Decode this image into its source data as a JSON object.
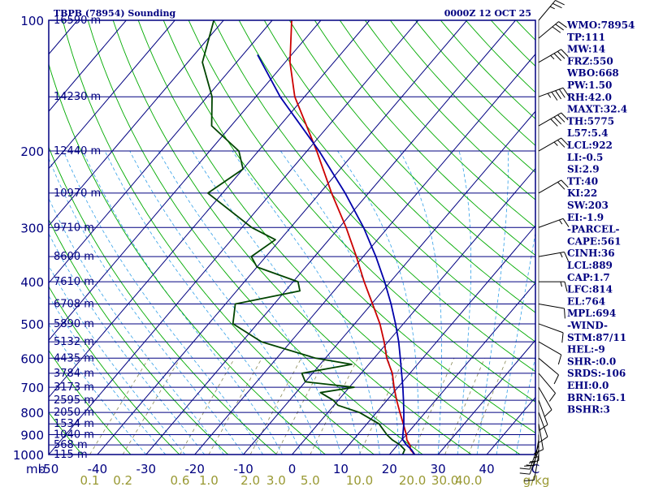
{
  "chart_data": {
    "type": "line",
    "chart_kind": "skew-t log-p sounding",
    "station": "TBPB (78954) Sounding",
    "valid_time": "0000Z 12 OCT 25",
    "pressure_levels": [
      1000,
      900,
      800,
      700,
      600,
      500,
      400,
      300,
      200,
      100
    ],
    "pressure_tick_labels": [
      "1000",
      "900",
      "800",
      "700",
      "600",
      "500",
      "400",
      "300",
      "200",
      "100"
    ],
    "pressure_axis_unit": "mb",
    "temperature_ticks": [
      -50,
      -40,
      -30,
      -20,
      -10,
      0,
      10,
      20,
      30,
      40
    ],
    "temperature_tick_labels": [
      "-50",
      "-40",
      "-30",
      "-20",
      "-10",
      "0",
      "10",
      "20",
      "30",
      "40"
    ],
    "temperature_axis_unit": "C",
    "temperature_range": [
      -50,
      50
    ],
    "pressure_range": [
      1000,
      100
    ],
    "height_labels": [
      {
        "p": 1000,
        "text": "115 m"
      },
      {
        "p": 950,
        "text": "568 m"
      },
      {
        "p": 900,
        "text": "1040 m"
      },
      {
        "p": 850,
        "text": "1534 m"
      },
      {
        "p": 800,
        "text": "2050 m"
      },
      {
        "p": 750,
        "text": "2595 m"
      },
      {
        "p": 700,
        "text": "3173 m"
      },
      {
        "p": 650,
        "text": "3784 m"
      },
      {
        "p": 600,
        "text": "4435 m"
      },
      {
        "p": 550,
        "text": "5132 m"
      },
      {
        "p": 500,
        "text": "5890 m"
      },
      {
        "p": 450,
        "text": "6708 m"
      },
      {
        "p": 400,
        "text": "7610 m"
      },
      {
        "p": 350,
        "text": "8600 m"
      },
      {
        "p": 300,
        "text": "9710 m"
      },
      {
        "p": 250,
        "text": "10970 m"
      },
      {
        "p": 200,
        "text": "12440 m"
      },
      {
        "p": 150,
        "text": "14230 m"
      },
      {
        "p": 100,
        "text": "16590 m"
      }
    ],
    "mixing_ratio_values": [
      0.1,
      0.2,
      0.6,
      1.0,
      2.0,
      3.0,
      5.0,
      10.0,
      20.0,
      30.0,
      40.0
    ],
    "mixing_ratio_labels": [
      "0.1",
      "0.2",
      "0.6",
      "1.0",
      "2.0",
      "3.0",
      "5.0",
      "10.0",
      "20.0",
      "30.0",
      "40.0"
    ],
    "mixing_ratio_unit": "g/kg",
    "series": [
      {
        "kind": "temperature",
        "color": "#cc0000",
        "points": [
          [
            1000,
            25.2
          ],
          [
            975,
            23.5
          ],
          [
            950,
            22.5
          ],
          [
            925,
            21.0
          ],
          [
            900,
            20.0
          ],
          [
            850,
            17.5
          ],
          [
            800,
            14.8
          ],
          [
            750,
            12.0
          ],
          [
            700,
            9.2
          ],
          [
            650,
            6.4
          ],
          [
            600,
            2.6
          ],
          [
            550,
            -0.8
          ],
          [
            500,
            -4.8
          ],
          [
            450,
            -9.8
          ],
          [
            400,
            -15.4
          ],
          [
            350,
            -21.4
          ],
          [
            300,
            -28.6
          ],
          [
            250,
            -37.6
          ],
          [
            200,
            -48.0
          ],
          [
            175,
            -54.5
          ],
          [
            150,
            -62.0
          ],
          [
            125,
            -69.0
          ],
          [
            100,
            -76.0
          ]
        ]
      },
      {
        "kind": "dewpoint",
        "color": "#004400",
        "points": [
          [
            1000,
            22.7
          ],
          [
            975,
            22.3
          ],
          [
            950,
            20.5
          ],
          [
            925,
            18.0
          ],
          [
            900,
            16.0
          ],
          [
            850,
            12.5
          ],
          [
            800,
            6.5
          ],
          [
            770,
            0.8
          ],
          [
            750,
            -1.0
          ],
          [
            720,
            -5.0
          ],
          [
            700,
            1.0
          ],
          [
            680,
            -10.0
          ],
          [
            650,
            -12.2
          ],
          [
            620,
            -3.5
          ],
          [
            600,
            -12.0
          ],
          [
            550,
            -26.0
          ],
          [
            500,
            -35.0
          ],
          [
            450,
            -38.0
          ],
          [
            420,
            -27.0
          ],
          [
            400,
            -29.0
          ],
          [
            370,
            -40.0
          ],
          [
            350,
            -43.0
          ],
          [
            320,
            -41.0
          ],
          [
            300,
            -48.0
          ],
          [
            250,
            -63.0
          ],
          [
            220,
            -60.0
          ],
          [
            200,
            -64.0
          ],
          [
            175,
            -74.0
          ],
          [
            150,
            -79.0
          ],
          [
            125,
            -87.0
          ],
          [
            100,
            -92.0
          ]
        ]
      },
      {
        "kind": "parcel",
        "color": "#0000aa",
        "points": [
          [
            1000,
            25.2
          ],
          [
            975,
            23.7
          ],
          [
            950,
            21.8
          ],
          [
            922,
            20.0
          ],
          [
            900,
            19.3
          ],
          [
            850,
            17.6
          ],
          [
            800,
            15.6
          ],
          [
            750,
            13.4
          ],
          [
            700,
            11.0
          ],
          [
            650,
            8.3
          ],
          [
            600,
            5.4
          ],
          [
            550,
            2.2
          ],
          [
            500,
            -1.6
          ],
          [
            450,
            -6.0
          ],
          [
            400,
            -11.2
          ],
          [
            350,
            -17.4
          ],
          [
            300,
            -25.0
          ],
          [
            250,
            -34.8
          ],
          [
            200,
            -47.5
          ],
          [
            150,
            -65.0
          ],
          [
            120,
            -77.0
          ]
        ]
      }
    ],
    "wind_barbs": [
      {
        "p": 1000,
        "dir": 190,
        "spd": 10
      },
      {
        "p": 975,
        "dir": 200,
        "spd": 10
      },
      {
        "p": 950,
        "dir": 200,
        "spd": 15
      },
      {
        "p": 925,
        "dir": 190,
        "spd": 15
      },
      {
        "p": 900,
        "dir": 180,
        "spd": 15
      },
      {
        "p": 850,
        "dir": 170,
        "spd": 10
      },
      {
        "p": 800,
        "dir": 160,
        "spd": 10
      },
      {
        "p": 750,
        "dir": 160,
        "spd": 10
      },
      {
        "p": 700,
        "dir": 150,
        "spd": 10
      },
      {
        "p": 650,
        "dir": 140,
        "spd": 10
      },
      {
        "p": 600,
        "dir": 130,
        "spd": 10
      },
      {
        "p": 550,
        "dir": 120,
        "spd": 10
      },
      {
        "p": 500,
        "dir": 110,
        "spd": 10
      },
      {
        "p": 450,
        "dir": 100,
        "spd": 10
      },
      {
        "p": 400,
        "dir": 90,
        "spd": 15
      },
      {
        "p": 350,
        "dir": 80,
        "spd": 15
      },
      {
        "p": 300,
        "dir": 70,
        "spd": 15
      },
      {
        "p": 250,
        "dir": 60,
        "spd": 20
      },
      {
        "p": 200,
        "dir": 60,
        "spd": 25
      },
      {
        "p": 175,
        "dir": 60,
        "spd": 40
      },
      {
        "p": 150,
        "dir": 70,
        "spd": 45
      },
      {
        "p": 125,
        "dir": 60,
        "spd": 35
      },
      {
        "p": 110,
        "dir": 50,
        "spd": 30
      },
      {
        "p": 100,
        "dir": 40,
        "spd": 25
      }
    ],
    "indices": [
      "WMO:78954",
      "TP:111",
      "MW:14",
      "FRZ:550",
      "WBO:668",
      "PW:1.50",
      "RH:42.0",
      "MAXT:32.4",
      "TH:5775",
      "L57:5.4",
      "LCL:922",
      "LI:-0.5",
      "SI:2.9",
      "TT:40",
      "KI:22",
      "SW:203",
      "EI:-1.9",
      "-PARCEL-",
      "CAPE:561",
      "CINH:36",
      "LCL:889",
      "CAP:1.7",
      "LFC:814",
      "EL:764",
      "MPL:694",
      "-WIND-",
      "STM:87/11",
      "HEL:-9",
      "SHR-:0.0",
      "SRDS:-106",
      "EHI:0.0",
      "BRN:165.1",
      "BSHR:3"
    ]
  }
}
